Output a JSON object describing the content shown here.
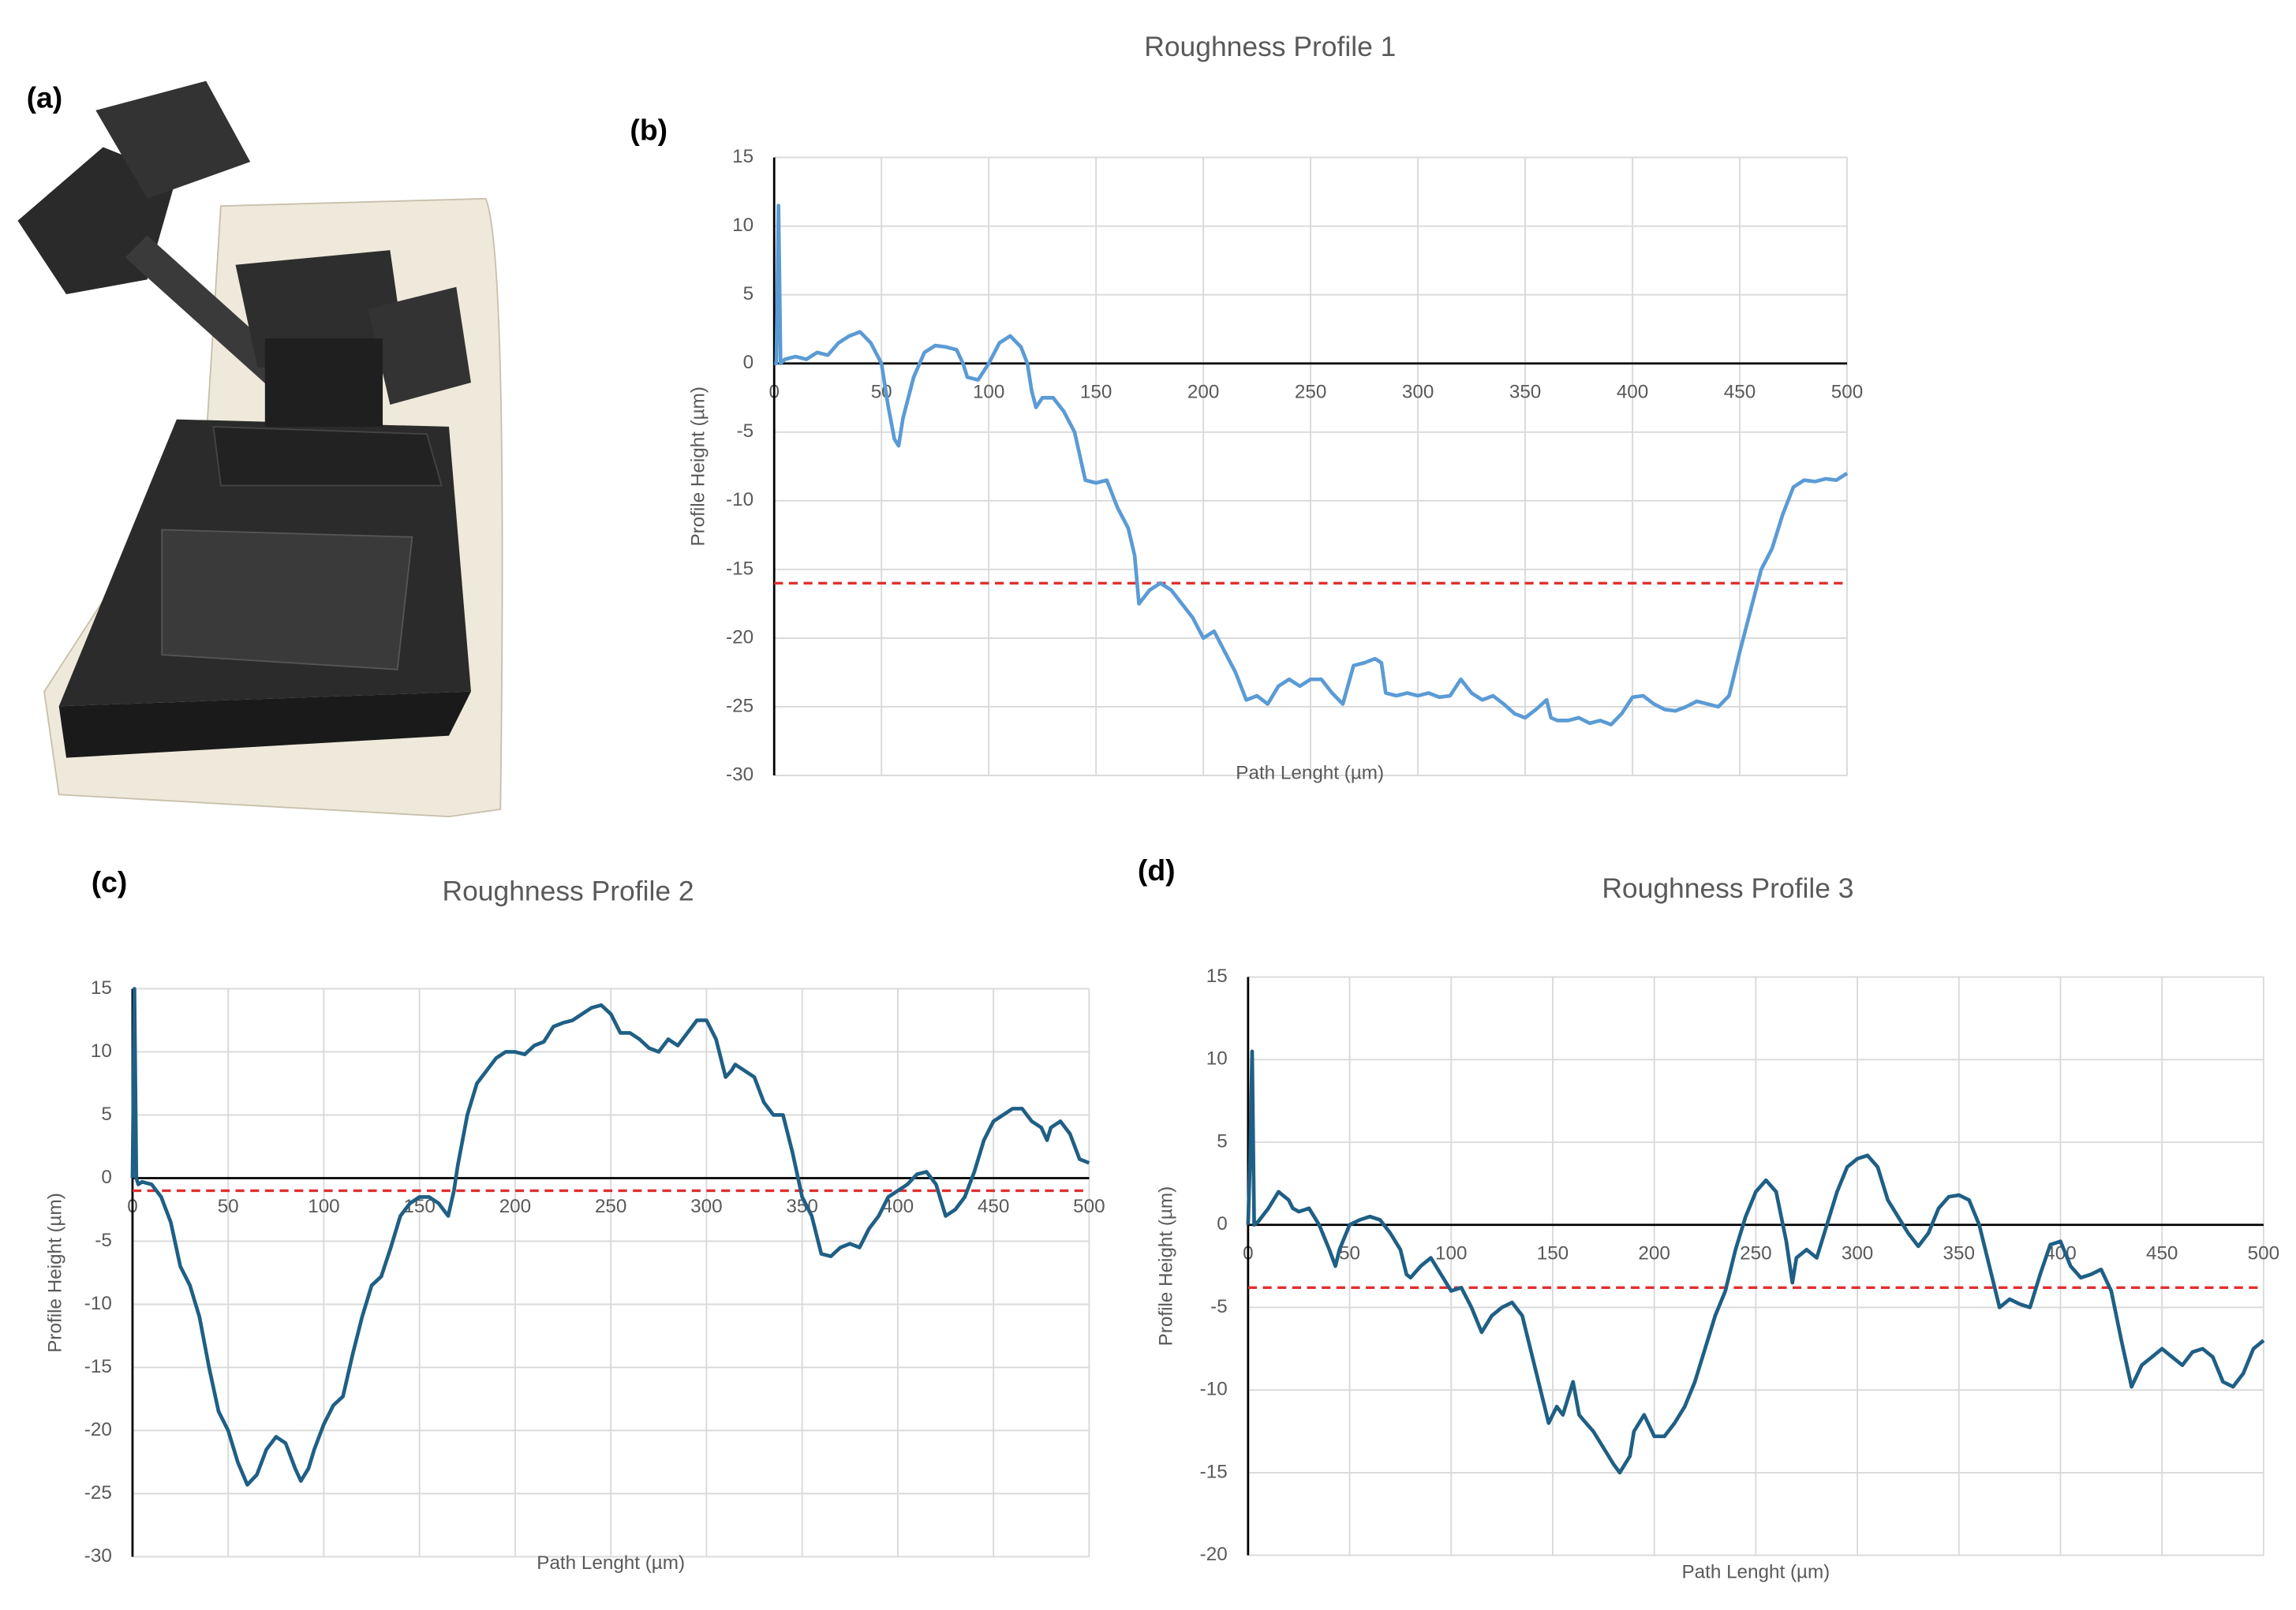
{
  "photo_label": "(a)",
  "chart_data": [
    {
      "type": "line",
      "panel_label": "(b)",
      "title": "Roughness Profile 1",
      "x_label": "Path Lenght (µm)",
      "y_label": "Profile Height (µm)",
      "xlim": [
        0,
        500
      ],
      "xticks": [
        0,
        50,
        100,
        150,
        200,
        250,
        300,
        350,
        400,
        450,
        500
      ],
      "ylim": [
        -30,
        15
      ],
      "yticks": [
        -30,
        -25,
        -20,
        -15,
        -10,
        -5,
        0,
        5,
        10,
        15
      ],
      "grid": true,
      "color": "#5b9bd5",
      "reference_line": {
        "value": -16,
        "color": "#e03030",
        "dashed": true
      },
      "x": [
        0,
        1,
        2,
        3,
        5,
        10,
        15,
        20,
        25,
        30,
        35,
        40,
        45,
        50,
        53,
        56,
        58,
        60,
        65,
        70,
        75,
        80,
        85,
        88,
        90,
        95,
        100,
        105,
        110,
        115,
        118,
        120,
        122,
        125,
        130,
        135,
        140,
        145,
        150,
        155,
        160,
        165,
        168,
        170,
        175,
        180,
        185,
        190,
        195,
        200,
        205,
        210,
        215,
        220,
        225,
        230,
        235,
        240,
        245,
        250,
        255,
        260,
        265,
        270,
        275,
        280,
        283,
        285,
        290,
        295,
        300,
        305,
        310,
        315,
        320,
        325,
        330,
        335,
        340,
        345,
        350,
        355,
        360,
        362,
        365,
        370,
        375,
        380,
        385,
        390,
        395,
        400,
        405,
        410,
        415,
        420,
        425,
        430,
        435,
        440,
        445,
        450,
        455,
        460,
        465,
        470,
        475,
        480,
        485,
        490,
        495,
        500
      ],
      "values": [
        0,
        0,
        11.5,
        0,
        0.3,
        0.5,
        0.3,
        0.8,
        0.6,
        1.5,
        2,
        2.3,
        1.5,
        0,
        -3,
        -5.5,
        -6,
        -4,
        -1,
        0.8,
        1.3,
        1.2,
        1,
        0,
        -1,
        -1.2,
        0,
        1.5,
        2,
        1.2,
        0,
        -2,
        -3.2,
        -2.5,
        -2.5,
        -3.5,
        -5,
        -8.5,
        -8.7,
        -8.5,
        -10.5,
        -12,
        -14,
        -17.5,
        -16.5,
        -16,
        -16.5,
        -17.5,
        -18.5,
        -20,
        -19.5,
        -21,
        -22.5,
        -24.5,
        -24.2,
        -24.8,
        -23.5,
        -23,
        -23.5,
        -23,
        -23,
        -24,
        -24.8,
        -22,
        -21.8,
        -21.5,
        -21.8,
        -24,
        -24.2,
        -24,
        -24.2,
        -24,
        -24.3,
        -24.2,
        -23,
        -24,
        -24.5,
        -24.2,
        -24.8,
        -25.5,
        -25.8,
        -25.2,
        -24.5,
        -25.8,
        -26,
        -26,
        -25.8,
        -26.2,
        -26,
        -26.3,
        -25.5,
        -24.3,
        -24.2,
        -24.8,
        -25.2,
        -25.3,
        -25,
        -24.6,
        -24.8,
        -25,
        -24.2,
        -21,
        -18,
        -15,
        -13.5,
        -11,
        -9,
        -8.5,
        -8.6,
        -8.4,
        -8.5,
        -8
      ]
    },
    {
      "type": "line",
      "panel_label": "(c)",
      "title": "Roughness Profile 2",
      "x_label": "Path Lenght (µm)",
      "y_label": "Profile Height (µm)",
      "xlim": [
        0,
        500
      ],
      "xticks": [
        0,
        50,
        100,
        150,
        200,
        250,
        300,
        350,
        400,
        450,
        500
      ],
      "ylim": [
        -30,
        15
      ],
      "yticks": [
        -30,
        -25,
        -20,
        -15,
        -10,
        -5,
        0,
        5,
        10,
        15
      ],
      "grid": true,
      "color": "#1f5f85",
      "reference_line": {
        "value": -1,
        "color": "#e03030",
        "dashed": true
      },
      "x": [
        0,
        1,
        2,
        3,
        5,
        10,
        15,
        20,
        25,
        30,
        35,
        40,
        45,
        50,
        55,
        60,
        65,
        70,
        75,
        80,
        85,
        88,
        92,
        95,
        100,
        105,
        110,
        115,
        120,
        125,
        130,
        135,
        140,
        145,
        150,
        155,
        160,
        165,
        168,
        170,
        175,
        180,
        185,
        190,
        195,
        200,
        205,
        210,
        215,
        220,
        225,
        230,
        235,
        240,
        245,
        250,
        255,
        260,
        265,
        270,
        275,
        280,
        285,
        290,
        295,
        300,
        305,
        310,
        313,
        315,
        320,
        325,
        330,
        335,
        340,
        345,
        350,
        355,
        360,
        365,
        370,
        375,
        380,
        385,
        390,
        395,
        400,
        405,
        410,
        415,
        420,
        425,
        430,
        435,
        440,
        445,
        450,
        455,
        460,
        465,
        470,
        475,
        478,
        480,
        485,
        490,
        495,
        500
      ],
      "values": [
        0,
        15,
        0,
        -0.5,
        -0.3,
        -0.5,
        -1.5,
        -3.5,
        -7,
        -8.5,
        -11,
        -15,
        -18.5,
        -20,
        -22.5,
        -24.3,
        -23.5,
        -21.5,
        -20.5,
        -21,
        -23,
        -24,
        -23,
        -21.5,
        -19.5,
        -18,
        -17.3,
        -14,
        -11,
        -8.5,
        -7.8,
        -5.5,
        -3,
        -2,
        -1.5,
        -1.5,
        -2,
        -3,
        -1,
        1,
        5,
        7.5,
        8.5,
        9.5,
        10,
        10,
        9.8,
        10.5,
        10.8,
        12,
        12.3,
        12.5,
        13,
        13.5,
        13.7,
        13,
        11.5,
        11.5,
        11,
        10.3,
        10,
        11,
        10.5,
        11.5,
        12.5,
        12.5,
        11,
        8,
        8.5,
        9,
        8.5,
        8,
        6,
        5,
        5,
        2,
        -1.5,
        -3,
        -6,
        -6.2,
        -5.5,
        -5.2,
        -5.5,
        -4,
        -3,
        -1.5,
        -1,
        -0.5,
        0.3,
        0.5,
        -0.5,
        -3,
        -2.5,
        -1.5,
        0.5,
        3,
        4.5,
        5,
        5.5,
        5.5,
        4.5,
        4,
        3,
        4,
        4.5,
        3.5,
        1.5,
        1.2
      ]
    },
    {
      "type": "line",
      "panel_label": "(d)",
      "title": "Roughness Profile 3",
      "x_label": "Path Lenght (µm)",
      "y_label": "Profile Height (µm)",
      "xlim": [
        0,
        500
      ],
      "xticks": [
        0,
        50,
        100,
        150,
        200,
        250,
        300,
        350,
        400,
        450,
        500
      ],
      "ylim": [
        -20,
        15
      ],
      "yticks": [
        -20,
        -15,
        -10,
        -5,
        0,
        5,
        10,
        15
      ],
      "grid": true,
      "color": "#1f5f85",
      "reference_line": {
        "value": -3.8,
        "color": "#e03030",
        "dashed": true
      },
      "x": [
        0,
        1,
        2,
        3,
        5,
        10,
        15,
        20,
        22,
        25,
        30,
        35,
        40,
        43,
        45,
        50,
        55,
        60,
        65,
        70,
        75,
        78,
        80,
        85,
        90,
        95,
        100,
        105,
        110,
        115,
        120,
        125,
        130,
        135,
        140,
        145,
        148,
        152,
        155,
        160,
        163,
        165,
        170,
        175,
        180,
        183,
        188,
        190,
        195,
        200,
        205,
        210,
        215,
        220,
        225,
        230,
        235,
        240,
        245,
        250,
        255,
        260,
        265,
        268,
        270,
        275,
        280,
        285,
        290,
        295,
        300,
        305,
        310,
        315,
        320,
        325,
        330,
        335,
        340,
        345,
        350,
        355,
        360,
        365,
        370,
        375,
        380,
        385,
        390,
        395,
        400,
        405,
        410,
        415,
        420,
        425,
        430,
        435,
        440,
        445,
        450,
        455,
        460,
        465,
        470,
        475,
        480,
        485,
        490,
        495,
        500
      ],
      "values": [
        0,
        4,
        10.5,
        0,
        0.2,
        1,
        2,
        1.5,
        1,
        0.8,
        1,
        0,
        -1.5,
        -2.5,
        -1.5,
        0,
        0.3,
        0.5,
        0.3,
        -0.5,
        -1.5,
        -3,
        -3.2,
        -2.5,
        -2,
        -3,
        -4,
        -3.8,
        -5,
        -6.5,
        -5.5,
        -5,
        -4.7,
        -5.5,
        -8,
        -10.5,
        -12,
        -11,
        -11.5,
        -9.5,
        -11.5,
        -11.8,
        -12.5,
        -13.5,
        -14.5,
        -15,
        -14,
        -12.5,
        -11.5,
        -12.8,
        -12.8,
        -12,
        -11,
        -9.5,
        -7.5,
        -5.5,
        -4,
        -1.5,
        0.5,
        2,
        2.7,
        2,
        -1,
        -3.5,
        -2,
        -1.5,
        -2,
        0,
        2,
        3.5,
        4,
        4.2,
        3.5,
        1.5,
        0.5,
        -0.5,
        -1.3,
        -0.5,
        1,
        1.7,
        1.8,
        1.5,
        0,
        -2.5,
        -5,
        -4.5,
        -4.8,
        -5,
        -3,
        -1.2,
        -1,
        -2.5,
        -3.2,
        -3,
        -2.7,
        -4,
        -7,
        -9.8,
        -8.5,
        -8,
        -7.5,
        -8,
        -8.5,
        -7.7,
        -7.5,
        -8,
        -9.5,
        -9.8,
        -9,
        -7.5,
        -7
      ]
    }
  ]
}
